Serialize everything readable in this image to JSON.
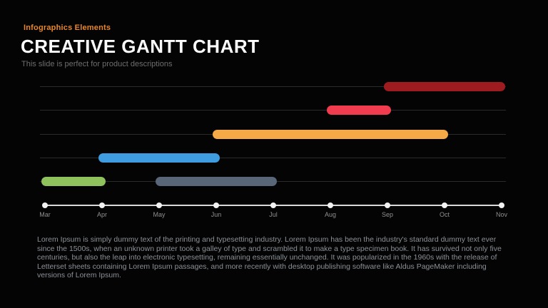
{
  "slide": {
    "eyebrow": "Infographics Elements",
    "title": "CREATIVE GANTT CHART",
    "subtitle": "This slide is perfect for product descriptions",
    "body_text": "Lorem Ipsum is simply dummy text of the printing and typesetting industry. Lorem Ipsum has been the industry's standard dummy text ever since the 1500s, when an unknown printer took a galley of type and scrambled it to make a type specimen book. It has survived not only five centuries, but also the leap into electronic typesetting, remaining essentially unchanged. It was popularized in the 1960s with the release of Letterset sheets containing Lorem Ipsum passages, and more recently with desktop publishing software like Aldus PageMaker including versions of Lorem Ipsum."
  },
  "colors": {
    "background": "#040404",
    "accent_orange": "#E6872C",
    "title_white": "#FCFCFC",
    "subtitle_gray": "#6E6E6E",
    "body_gray": "#8B9197",
    "track_line": "#2B2B2B",
    "axis_white": "#F2F2F2",
    "month_label_gray": "#8F8F8F"
  },
  "chart_data": {
    "type": "bar",
    "variant": "gantt",
    "title": "",
    "xlabel": "",
    "ylabel": "",
    "months": [
      "Mar",
      "Apr",
      "May",
      "Jun",
      "Jul",
      "Aug",
      "Sep",
      "Oct",
      "Nov"
    ],
    "row_count": 5,
    "grid": "horizontal row tracks, no vertical gridlines",
    "legend": "none",
    "axis": "single bottom timeline with white dots at each month tick",
    "tasks": [
      {
        "row": 0,
        "start": "Sep",
        "end": "Nov",
        "color": "#9E1B1F",
        "label": "dark-red-task"
      },
      {
        "row": 1,
        "start": "Aug",
        "end": "Sep",
        "color": "#F03C4E",
        "label": "red-task"
      },
      {
        "row": 2,
        "start": "Jun",
        "end": "Oct",
        "color": "#F5A947",
        "label": "orange-task"
      },
      {
        "row": 3,
        "start": "Apr",
        "end": "Jun",
        "color": "#3F9CE0",
        "label": "blue-task"
      },
      {
        "row": 4,
        "start": "Mar",
        "end": "Apr",
        "color": "#8FC15C",
        "label": "green-task"
      },
      {
        "row": 4,
        "start": "May",
        "end": "Jul",
        "color": "#586678",
        "label": "slate-task"
      }
    ]
  }
}
